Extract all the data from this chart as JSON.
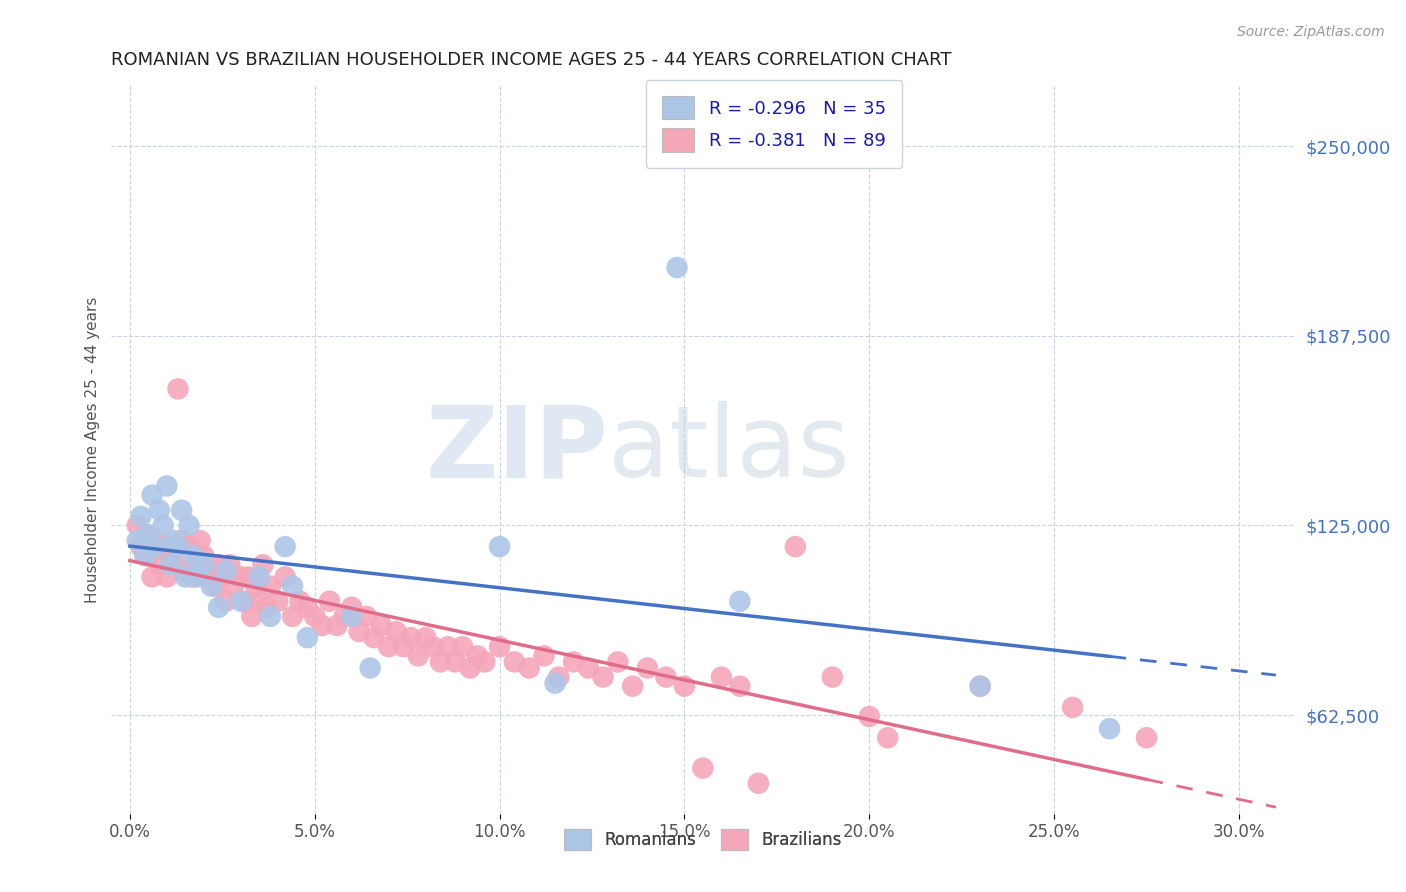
{
  "title": "ROMANIAN VS BRAZILIAN HOUSEHOLDER INCOME AGES 25 - 44 YEARS CORRELATION CHART",
  "source": "Source: ZipAtlas.com",
  "ylabel": "Householder Income Ages 25 - 44 years",
  "xlabel_ticks": [
    "0.0%",
    "5.0%",
    "10.0%",
    "15.0%",
    "20.0%",
    "25.0%",
    "30.0%"
  ],
  "xlabel_vals": [
    0.0,
    0.05,
    0.1,
    0.15,
    0.2,
    0.25,
    0.3
  ],
  "ytick_labels": [
    "$250,000",
    "$187,500",
    "$125,000",
    "$62,500"
  ],
  "ytick_vals": [
    250000,
    187500,
    125000,
    62500
  ],
  "ylim": [
    30000,
    270000
  ],
  "xlim": [
    -0.005,
    0.315
  ],
  "romanian_R": -0.296,
  "romanian_N": 35,
  "brazilian_R": -0.381,
  "brazilian_N": 89,
  "romanian_color": "#adc6e8",
  "brazilian_color": "#f4a7b9",
  "romanian_line_color": "#4472c4",
  "brazilian_line_color": "#e06c8a",
  "watermark_zip": "ZIP",
  "watermark_atlas": "atlas",
  "romanian_points": [
    [
      0.002,
      120000
    ],
    [
      0.003,
      128000
    ],
    [
      0.004,
      115000
    ],
    [
      0.005,
      122000
    ],
    [
      0.006,
      135000
    ],
    [
      0.007,
      118000
    ],
    [
      0.008,
      130000
    ],
    [
      0.009,
      125000
    ],
    [
      0.01,
      138000
    ],
    [
      0.011,
      112000
    ],
    [
      0.012,
      120000
    ],
    [
      0.013,
      118000
    ],
    [
      0.014,
      130000
    ],
    [
      0.015,
      108000
    ],
    [
      0.016,
      125000
    ],
    [
      0.017,
      115000
    ],
    [
      0.018,
      108000
    ],
    [
      0.02,
      112000
    ],
    [
      0.022,
      105000
    ],
    [
      0.024,
      98000
    ],
    [
      0.026,
      110000
    ],
    [
      0.03,
      100000
    ],
    [
      0.035,
      108000
    ],
    [
      0.038,
      95000
    ],
    [
      0.042,
      118000
    ],
    [
      0.044,
      105000
    ],
    [
      0.048,
      88000
    ],
    [
      0.06,
      95000
    ],
    [
      0.065,
      78000
    ],
    [
      0.1,
      118000
    ],
    [
      0.115,
      73000
    ],
    [
      0.148,
      210000
    ],
    [
      0.165,
      100000
    ],
    [
      0.23,
      72000
    ],
    [
      0.265,
      58000
    ]
  ],
  "brazilian_points": [
    [
      0.002,
      125000
    ],
    [
      0.003,
      118000
    ],
    [
      0.004,
      122000
    ],
    [
      0.005,
      115000
    ],
    [
      0.006,
      108000
    ],
    [
      0.007,
      120000
    ],
    [
      0.008,
      112000
    ],
    [
      0.009,
      118000
    ],
    [
      0.01,
      108000
    ],
    [
      0.011,
      115000
    ],
    [
      0.012,
      112000
    ],
    [
      0.013,
      170000
    ],
    [
      0.014,
      120000
    ],
    [
      0.015,
      110000
    ],
    [
      0.016,
      118000
    ],
    [
      0.017,
      108000
    ],
    [
      0.018,
      112000
    ],
    [
      0.019,
      120000
    ],
    [
      0.02,
      115000
    ],
    [
      0.021,
      108000
    ],
    [
      0.022,
      110000
    ],
    [
      0.023,
      105000
    ],
    [
      0.024,
      112000
    ],
    [
      0.025,
      108000
    ],
    [
      0.026,
      100000
    ],
    [
      0.027,
      112000
    ],
    [
      0.028,
      105000
    ],
    [
      0.03,
      108000
    ],
    [
      0.031,
      100000
    ],
    [
      0.032,
      108000
    ],
    [
      0.033,
      95000
    ],
    [
      0.034,
      105000
    ],
    [
      0.035,
      100000
    ],
    [
      0.036,
      112000
    ],
    [
      0.037,
      98000
    ],
    [
      0.038,
      105000
    ],
    [
      0.04,
      100000
    ],
    [
      0.042,
      108000
    ],
    [
      0.044,
      95000
    ],
    [
      0.046,
      100000
    ],
    [
      0.048,
      98000
    ],
    [
      0.05,
      95000
    ],
    [
      0.052,
      92000
    ],
    [
      0.054,
      100000
    ],
    [
      0.056,
      92000
    ],
    [
      0.058,
      95000
    ],
    [
      0.06,
      98000
    ],
    [
      0.062,
      90000
    ],
    [
      0.064,
      95000
    ],
    [
      0.066,
      88000
    ],
    [
      0.068,
      92000
    ],
    [
      0.07,
      85000
    ],
    [
      0.072,
      90000
    ],
    [
      0.074,
      85000
    ],
    [
      0.076,
      88000
    ],
    [
      0.078,
      82000
    ],
    [
      0.08,
      88000
    ],
    [
      0.082,
      85000
    ],
    [
      0.084,
      80000
    ],
    [
      0.086,
      85000
    ],
    [
      0.088,
      80000
    ],
    [
      0.09,
      85000
    ],
    [
      0.092,
      78000
    ],
    [
      0.094,
      82000
    ],
    [
      0.096,
      80000
    ],
    [
      0.1,
      85000
    ],
    [
      0.104,
      80000
    ],
    [
      0.108,
      78000
    ],
    [
      0.112,
      82000
    ],
    [
      0.116,
      75000
    ],
    [
      0.12,
      80000
    ],
    [
      0.124,
      78000
    ],
    [
      0.128,
      75000
    ],
    [
      0.132,
      80000
    ],
    [
      0.136,
      72000
    ],
    [
      0.14,
      78000
    ],
    [
      0.145,
      75000
    ],
    [
      0.15,
      72000
    ],
    [
      0.155,
      45000
    ],
    [
      0.16,
      75000
    ],
    [
      0.165,
      72000
    ],
    [
      0.17,
      40000
    ],
    [
      0.18,
      118000
    ],
    [
      0.19,
      75000
    ],
    [
      0.2,
      62000
    ],
    [
      0.205,
      55000
    ],
    [
      0.23,
      72000
    ],
    [
      0.255,
      65000
    ],
    [
      0.275,
      55000
    ]
  ]
}
